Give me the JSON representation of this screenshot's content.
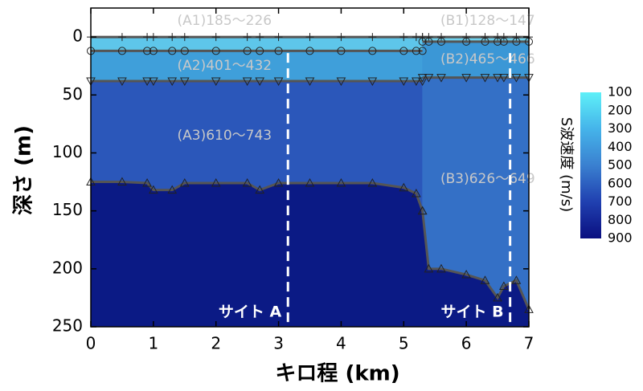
{
  "chart_data": {
    "type": "profile",
    "xlabel": "キロ程 (km)",
    "ylabel": "深さ (m)",
    "xlim": [
      0,
      7
    ],
    "xticks": [
      0,
      1,
      2,
      3,
      4,
      5,
      6,
      7
    ],
    "ylim": [
      -25,
      250
    ],
    "yticks": [
      0,
      50,
      100,
      150,
      200,
      250
    ],
    "y_inverted": true,
    "markers": [
      "plus",
      "circle",
      "triangle-down",
      "triangle-up"
    ],
    "boundary_color": "#555555",
    "sections": [
      {
        "x": [
          0,
          0.5,
          0.9,
          1.0,
          1.3,
          1.5,
          2.0,
          2.5,
          2.7,
          3.0,
          3.5,
          4.0,
          4.5,
          5.0,
          5.2,
          5.3
        ],
        "boundaries": [
          [
            0,
            0,
            0,
            0,
            0,
            0,
            0,
            0,
            0,
            0,
            0,
            0,
            0,
            0,
            0,
            0
          ],
          [
            12,
            12,
            12,
            12,
            12,
            12,
            12,
            12,
            12,
            12,
            12,
            12,
            12,
            12,
            12,
            12
          ],
          [
            38,
            38,
            38,
            38,
            38,
            38,
            38,
            38,
            38,
            38,
            38,
            38,
            38,
            38,
            38,
            38
          ],
          [
            125,
            125,
            126,
            132,
            132,
            126,
            126,
            126,
            132,
            126,
            126,
            126,
            126,
            130,
            135,
            150
          ]
        ],
        "layer_colors": [
          "#5ec6ea",
          "#3f9fda",
          "#2b57ba",
          "#0b1a85"
        ],
        "layer_labels": [
          "(A1)185～226",
          "(A2)401～432",
          "(A3)610～743"
        ]
      },
      {
        "x": [
          5.3,
          5.4,
          5.6,
          6.0,
          6.3,
          6.5,
          6.6,
          6.8,
          7.0
        ],
        "boundaries": [
          [
            0,
            0,
            0,
            0,
            0,
            0,
            0,
            0,
            0
          ],
          [
            4,
            4,
            4,
            4,
            4,
            4,
            4,
            4,
            4
          ],
          [
            35,
            35,
            35,
            35,
            35,
            35,
            35,
            35,
            35
          ],
          [
            150,
            200,
            200,
            205,
            210,
            225,
            215,
            210,
            235
          ]
        ],
        "layer_colors": [
          "#6fd2ee",
          "#3b97d6",
          "#3470c6",
          "#0b1a85"
        ],
        "layer_labels": [
          "(B1)128～147",
          "(B2)465～466",
          "(B3)626～649"
        ]
      }
    ],
    "sites": [
      {
        "label": "サイト A",
        "x": 3.15
      },
      {
        "label": "サイト B",
        "x": 6.7
      }
    ],
    "colorbar": {
      "label": "S波速度 (m/s)",
      "lim": [
        100,
        900
      ],
      "ticks": [
        100,
        200,
        300,
        400,
        500,
        600,
        700,
        800,
        900
      ],
      "colors": [
        "#5ef0f8",
        "#45b4ea",
        "#3a80d0",
        "#2040b0",
        "#0a0f80"
      ]
    }
  }
}
